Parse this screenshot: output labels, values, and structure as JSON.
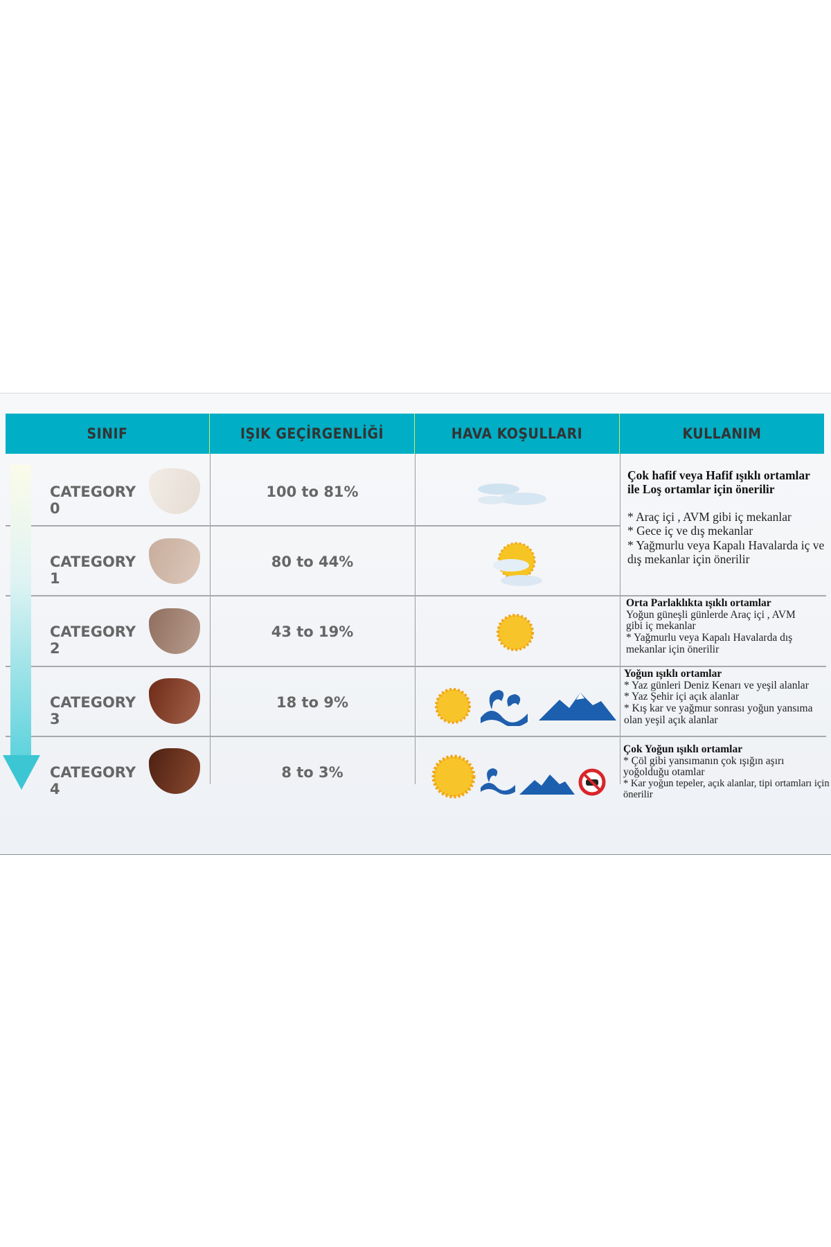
{
  "headers": [
    "SINIF",
    "IŞIK GEÇİRGENLİĞİ",
    "HAVA KOŞULLARI",
    "KULLANIM"
  ],
  "rows": [
    {
      "category": "CATEGORY  0",
      "transmission": "100 to 81%",
      "lens_color": "#ede4dd",
      "weather_icons": [
        "clouds-icon"
      ]
    },
    {
      "category": "CATEGORY 1",
      "transmission": "80 to 44%",
      "lens_color": "#c8ad9c",
      "weather_icons": [
        "sun-behind-clouds-icon"
      ]
    },
    {
      "category": "CATEGORY 2",
      "transmission": "43 to 19%",
      "lens_color": "#9c7b6a",
      "weather_icons": [
        "sun-icon"
      ]
    },
    {
      "category": "CATEGORY 3",
      "transmission": "18 to 9%",
      "lens_color": "#7a3522",
      "weather_icons": [
        "sun-icon",
        "waves-icon",
        "mountains-icon"
      ]
    },
    {
      "category": "CATEGORY 4",
      "transmission": "8 to 3%",
      "lens_color": "#5a2a18",
      "weather_icons": [
        "sun-icon",
        "waves-icon",
        "mountains-icon",
        "no-driving-icon"
      ]
    }
  ],
  "usage": [
    {
      "title": "Çok hafif veya Hafif ışıklı ortamlar ile Loş ortamlar için önerilir",
      "lines": [
        "* Araç içi , AVM gibi iç mekanlar",
        "* Gece iç ve dış mekanlar",
        "* Yağmurlu veya Kapalı Havalarda iç ve dış mekanlar için önerilir"
      ]
    },
    {
      "title": "Orta Parlaklıkta ışıklı ortamlar",
      "lines": [
        "Yoğun güneşli günlerde Araç içi , AVM gibi iç mekanlar",
        "* Yağmurlu veya Kapalı Havalarda dış mekanlar için önerilir"
      ]
    },
    {
      "title": "Yoğun  ışıklı ortamlar",
      "lines": [
        "* Yaz günleri Deniz Kenarı ve yeşil alanlar",
        "* Yaz Şehir içi açık alanlar",
        "* Kış kar ve yağmur sonrası yoğun yansıma olan yeşil açık alanlar"
      ]
    },
    {
      "title": "Çok Yoğun  ışıklı ortamlar",
      "lines": [
        "* Çöl gibi yansımanın çok ışığın aşırı yoğolduğu otamlar",
        "* Kar yoğun tepeler, açık alanlar, tipi ortamları için önerilir"
      ]
    }
  ],
  "colors": {
    "header": "#00aec5",
    "arrow": "#3cc6d3"
  }
}
